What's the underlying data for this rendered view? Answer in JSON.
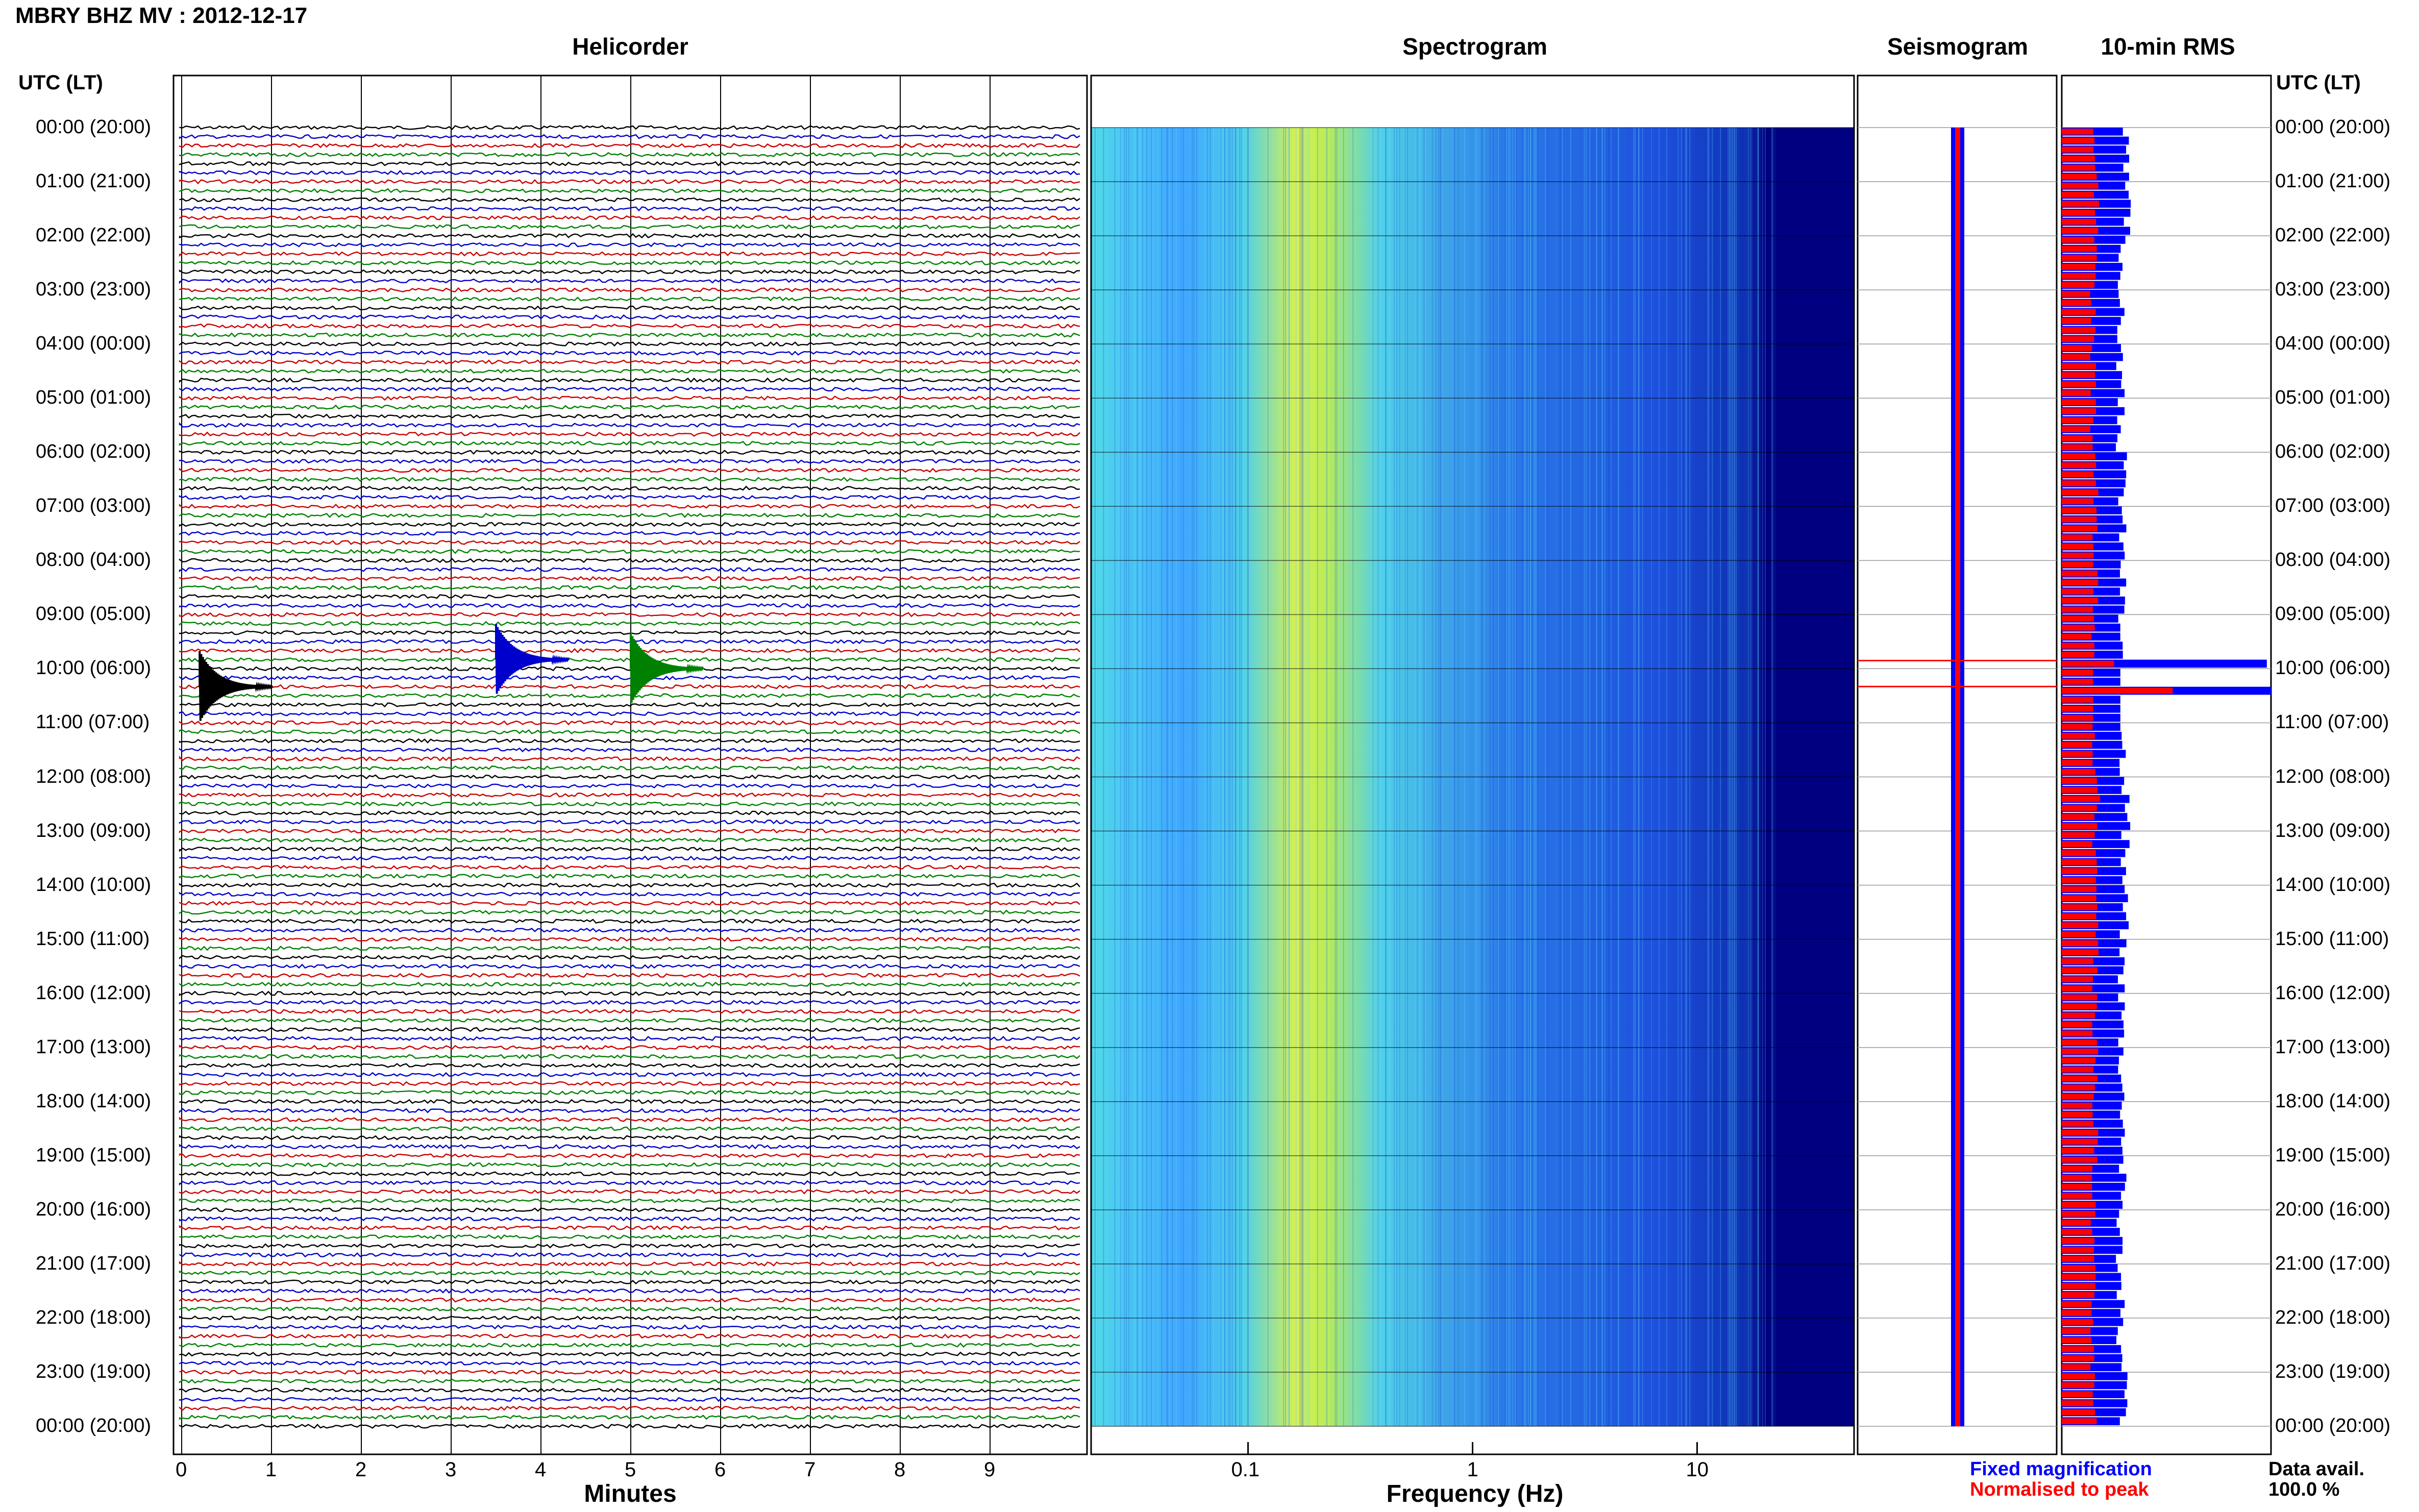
{
  "header": {
    "title": "MBRY BHZ MV : 2012-12-17"
  },
  "panels": {
    "helicorder": "Helicorder",
    "spectrogram": "Spectrogram",
    "seismogram": "Seismogram",
    "rms": "10-min RMS"
  },
  "axis": {
    "utc_label": "UTC (LT)",
    "helicorder_xlabel": "Minutes",
    "spectrogram_xlabel": "Frequency (Hz)"
  },
  "legend": {
    "fixed": "Fixed magnification",
    "normalised": "Normalised to peak",
    "fixed_color": "#0000ff",
    "normalised_color": "#ff0000"
  },
  "availability": {
    "label": "Data avail.",
    "value": "100.0 %"
  },
  "chart_data": [
    {
      "type": "line",
      "title": "Helicorder",
      "xlabel": "Minutes",
      "x_ticks": [
        "0",
        "1",
        "2",
        "3",
        "4",
        "5",
        "6",
        "7",
        "8",
        "9"
      ],
      "xlim": [
        0,
        10
      ],
      "y_tick_labels": [
        "00:00 (20:00)",
        "01:00 (21:00)",
        "02:00 (22:00)",
        "03:00 (23:00)",
        "04:00 (00:00)",
        "05:00 (01:00)",
        "06:00 (02:00)",
        "07:00 (03:00)",
        "08:00 (04:00)",
        "09:00 (05:00)",
        "10:00 (06:00)",
        "11:00 (07:00)",
        "12:00 (08:00)",
        "13:00 (09:00)",
        "14:00 (10:00)",
        "15:00 (11:00)",
        "16:00 (12:00)",
        "17:00 (13:00)",
        "18:00 (14:00)",
        "19:00 (15:00)",
        "20:00 (16:00)",
        "21:00 (17:00)",
        "22:00 (18:00)",
        "23:00 (19:00)",
        "00:00 (20:00)"
      ],
      "trace_colors": [
        "#000000",
        "#0000cc",
        "#cc0000",
        "#008000"
      ],
      "rows_per_hour": 6,
      "events": [
        {
          "time": "09:50",
          "minute": 3.5,
          "color": "#0000cc"
        },
        {
          "time": "10:00",
          "minute": 5.0,
          "color": "#008000"
        },
        {
          "time": "10:20",
          "minute": 0.2,
          "color": "#000000"
        }
      ]
    },
    {
      "type": "heatmap",
      "title": "Spectrogram",
      "xlabel": "Frequency (Hz)",
      "x_scale": "log",
      "xlim": [
        0.02,
        50
      ],
      "x_ticks": [
        "0.1",
        "1",
        "10"
      ],
      "peak_frequency_hz": 0.2,
      "colors": [
        "#000080",
        "#1c4fdc",
        "#3fa7ff",
        "#50e0e0",
        "#d8f050"
      ]
    },
    {
      "type": "line",
      "title": "Seismogram",
      "series": [
        {
          "name": "Fixed magnification"
        },
        {
          "name": "Normalised to peak"
        }
      ]
    },
    {
      "type": "bar",
      "title": "10-min RMS",
      "orientation": "horizontal",
      "series": [
        {
          "name": "Fixed magnification",
          "color": "#0000ff"
        },
        {
          "name": "Normalised to peak",
          "color": "#ff0000"
        }
      ],
      "notes": "rows are 10-minute intervals 00:00 to 24:00 UTC; spikes near 09:50 and 10:20",
      "hours": [
        0,
        1,
        2,
        3,
        4,
        5,
        6,
        7,
        8,
        9,
        10,
        11,
        12,
        13,
        14,
        15,
        16,
        17,
        18,
        19,
        20,
        21,
        22,
        23
      ],
      "fixed_relative": [
        0.3,
        0.31,
        0.29,
        0.28,
        0.28,
        0.28,
        0.29,
        0.29,
        0.29,
        0.28,
        1.0,
        0.3,
        0.31,
        0.3,
        0.3,
        0.29,
        0.29,
        0.29,
        0.3,
        0.29,
        0.28,
        0.28,
        0.28,
        0.3
      ],
      "normalised_relative": [
        0.16,
        0.17,
        0.16,
        0.15,
        0.15,
        0.15,
        0.16,
        0.16,
        0.16,
        0.15,
        0.53,
        0.16,
        0.17,
        0.16,
        0.16,
        0.16,
        0.16,
        0.16,
        0.16,
        0.16,
        0.15,
        0.15,
        0.15,
        0.16
      ]
    }
  ]
}
